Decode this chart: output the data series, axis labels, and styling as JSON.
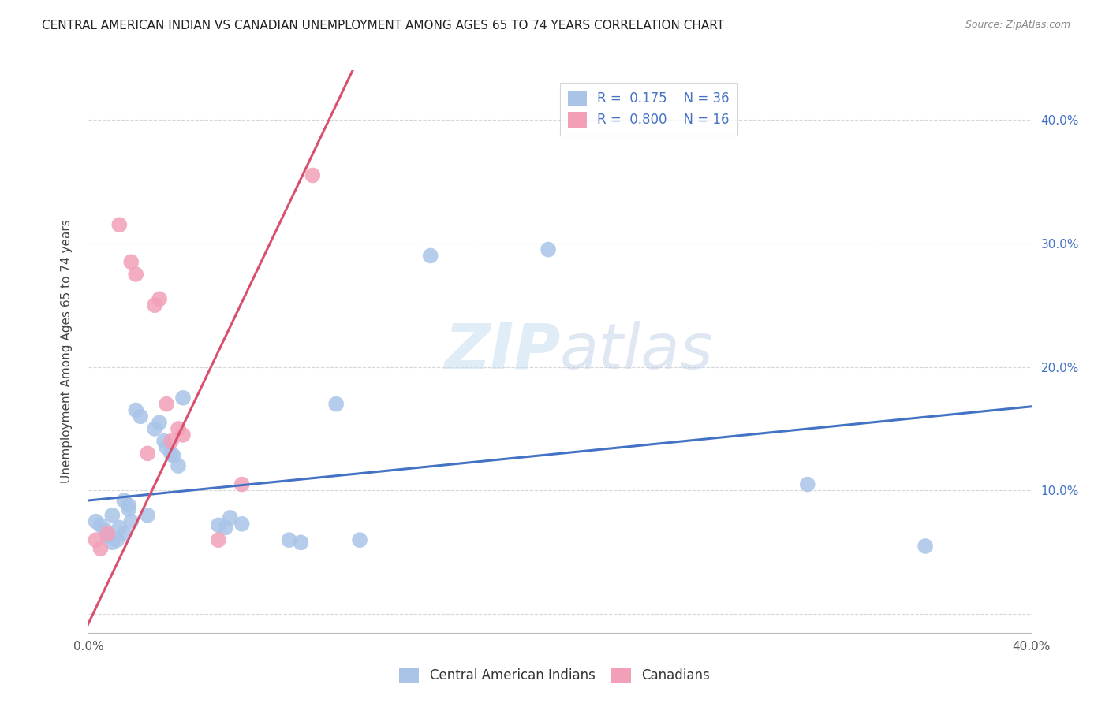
{
  "title": "CENTRAL AMERICAN INDIAN VS CANADIAN UNEMPLOYMENT AMONG AGES 65 TO 74 YEARS CORRELATION CHART",
  "source": "Source: ZipAtlas.com",
  "ylabel": "Unemployment Among Ages 65 to 74 years",
  "xlim": [
    0.0,
    0.4
  ],
  "ylim": [
    -0.015,
    0.44
  ],
  "legend_r1": "R =  0.175",
  "legend_n1": "N = 36",
  "legend_r2": "R =  0.800",
  "legend_n2": "N = 16",
  "color_blue": "#aac4e8",
  "color_pink": "#f2a0b8",
  "color_blue_line": "#4472c4",
  "color_pink_line": "#d94f6e",
  "watermark_zip": "ZIP",
  "watermark_atlas": "atlas",
  "blue_scatter": [
    [
      0.003,
      0.075
    ],
    [
      0.005,
      0.072
    ],
    [
      0.007,
      0.068
    ],
    [
      0.008,
      0.063
    ],
    [
      0.01,
      0.058
    ],
    [
      0.01,
      0.08
    ],
    [
      0.012,
      0.06
    ],
    [
      0.013,
      0.07
    ],
    [
      0.015,
      0.065
    ],
    [
      0.015,
      0.092
    ],
    [
      0.017,
      0.088
    ],
    [
      0.017,
      0.085
    ],
    [
      0.018,
      0.075
    ],
    [
      0.02,
      0.165
    ],
    [
      0.022,
      0.16
    ],
    [
      0.025,
      0.08
    ],
    [
      0.028,
      0.15
    ],
    [
      0.03,
      0.155
    ],
    [
      0.032,
      0.14
    ],
    [
      0.033,
      0.135
    ],
    [
      0.035,
      0.13
    ],
    [
      0.036,
      0.128
    ],
    [
      0.038,
      0.12
    ],
    [
      0.04,
      0.175
    ],
    [
      0.055,
      0.072
    ],
    [
      0.058,
      0.07
    ],
    [
      0.06,
      0.078
    ],
    [
      0.065,
      0.073
    ],
    [
      0.085,
      0.06
    ],
    [
      0.09,
      0.058
    ],
    [
      0.105,
      0.17
    ],
    [
      0.115,
      0.06
    ],
    [
      0.145,
      0.29
    ],
    [
      0.195,
      0.295
    ],
    [
      0.305,
      0.105
    ],
    [
      0.355,
      0.055
    ]
  ],
  "pink_scatter": [
    [
      0.003,
      0.06
    ],
    [
      0.005,
      0.053
    ],
    [
      0.008,
      0.065
    ],
    [
      0.013,
      0.315
    ],
    [
      0.018,
      0.285
    ],
    [
      0.02,
      0.275
    ],
    [
      0.025,
      0.13
    ],
    [
      0.028,
      0.25
    ],
    [
      0.03,
      0.255
    ],
    [
      0.033,
      0.17
    ],
    [
      0.035,
      0.14
    ],
    [
      0.038,
      0.15
    ],
    [
      0.04,
      0.145
    ],
    [
      0.055,
      0.06
    ],
    [
      0.065,
      0.105
    ],
    [
      0.095,
      0.355
    ]
  ],
  "blue_line_x": [
    0.0,
    0.4
  ],
  "blue_line_y": [
    0.092,
    0.168
  ],
  "pink_line_x": [
    -0.002,
    0.112
  ],
  "pink_line_y": [
    -0.015,
    0.44
  ]
}
